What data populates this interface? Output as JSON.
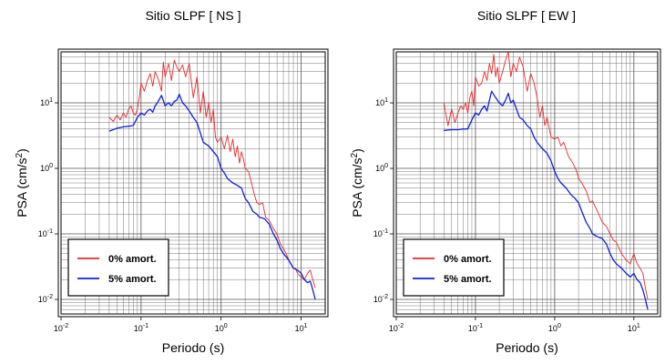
{
  "colors": {
    "undamped": "#e8292a",
    "damped": "#1020d8",
    "grid": "#555555",
    "frame": "#000000"
  },
  "chart_data": [
    {
      "type": "line",
      "title": "Sitio SLPF [ NS ]",
      "xlabel": "Periodo (s)",
      "ylabel_base": "PSA (cm/s",
      "ylabel_exp": "2",
      "ylabel_close": ")",
      "x_scale": "log",
      "y_scale": "log",
      "xlim": [
        0.01,
        20
      ],
      "ylim": [
        0.006,
        60
      ],
      "x_ticks": [
        {
          "value": 0.01,
          "base": "10",
          "exp": "-2"
        },
        {
          "value": 0.1,
          "base": "10",
          "exp": "-1"
        },
        {
          "value": 1,
          "base": "10",
          "exp": "0"
        },
        {
          "value": 10,
          "base": "10",
          "exp": "1"
        }
      ],
      "y_ticks": [
        {
          "value": 0.01,
          "base": "10",
          "exp": "-2"
        },
        {
          "value": 0.1,
          "base": "10",
          "exp": "-1"
        },
        {
          "value": 1,
          "base": "10",
          "exp": "0"
        },
        {
          "value": 10,
          "base": "10",
          "exp": "1"
        }
      ],
      "grid": true,
      "legend_position": "bottom-left",
      "series": [
        {
          "name": "0% amort.",
          "color": "#e8292a",
          "x": [
            0.04,
            0.045,
            0.05,
            0.055,
            0.06,
            0.065,
            0.07,
            0.075,
            0.08,
            0.085,
            0.09,
            0.095,
            0.1,
            0.11,
            0.12,
            0.13,
            0.14,
            0.15,
            0.16,
            0.17,
            0.18,
            0.19,
            0.2,
            0.22,
            0.24,
            0.26,
            0.28,
            0.3,
            0.33,
            0.36,
            0.4,
            0.45,
            0.5,
            0.55,
            0.6,
            0.65,
            0.7,
            0.75,
            0.8,
            0.85,
            0.9,
            1.0,
            1.1,
            1.2,
            1.3,
            1.4,
            1.5,
            1.6,
            1.7,
            1.8,
            1.9,
            2.0,
            2.2,
            2.4,
            2.6,
            2.8,
            3.0,
            3.3,
            3.6,
            4.0,
            4.5,
            5.0,
            5.5,
            6.0,
            6.5,
            7.0,
            7.5,
            8.0,
            8.5,
            9.0,
            10,
            11,
            12,
            13,
            14,
            15
          ],
          "y": [
            6,
            5.2,
            6.5,
            5.5,
            7,
            6,
            8,
            9,
            7,
            6.5,
            8,
            12,
            20,
            15,
            22,
            28,
            18,
            30,
            25,
            20,
            15,
            42,
            25,
            40,
            22,
            45,
            35,
            30,
            38,
            25,
            40,
            12,
            25,
            7,
            15,
            6,
            10,
            5,
            8,
            3,
            2.5,
            3,
            2,
            3.2,
            1.8,
            2.8,
            1.5,
            2.2,
            1.2,
            1.8,
            1.4,
            1.0,
            0.9,
            0.6,
            0.4,
            0.3,
            0.28,
            0.3,
            0.18,
            0.16,
            0.12,
            0.1,
            0.07,
            0.06,
            0.05,
            0.04,
            0.035,
            0.03,
            0.03,
            0.025,
            0.022,
            0.02,
            0.025,
            0.028,
            0.02,
            0.015
          ]
        },
        {
          "name": "5% amort.",
          "color": "#1020d8",
          "x": [
            0.04,
            0.05,
            0.06,
            0.07,
            0.08,
            0.09,
            0.1,
            0.11,
            0.12,
            0.13,
            0.14,
            0.15,
            0.16,
            0.18,
            0.2,
            0.22,
            0.24,
            0.26,
            0.28,
            0.3,
            0.33,
            0.36,
            0.4,
            0.45,
            0.5,
            0.55,
            0.6,
            0.7,
            0.8,
            0.9,
            1.0,
            1.1,
            1.2,
            1.4,
            1.6,
            1.8,
            2.0,
            2.2,
            2.5,
            2.8,
            3.0,
            3.5,
            4.0,
            4.5,
            5.0,
            5.5,
            6.0,
            7.0,
            8.0,
            9.0,
            10,
            11,
            12,
            13,
            14,
            15
          ],
          "y": [
            3.7,
            4.1,
            4.3,
            4.4,
            4.5,
            6,
            7,
            6.5,
            7.5,
            8,
            7.2,
            9,
            10,
            13,
            9,
            10,
            9,
            10.5,
            11,
            13.5,
            10,
            9,
            7.5,
            6,
            5,
            3.5,
            2.5,
            2.2,
            1.8,
            1.5,
            1.0,
            0.85,
            0.7,
            0.6,
            0.55,
            0.5,
            0.35,
            0.3,
            0.22,
            0.2,
            0.18,
            0.17,
            0.14,
            0.1,
            0.08,
            0.06,
            0.05,
            0.04,
            0.03,
            0.028,
            0.025,
            0.02,
            0.018,
            0.019,
            0.014,
            0.01
          ]
        }
      ]
    },
    {
      "type": "line",
      "title": "Sitio SLPF [ EW ]",
      "xlabel": "Periodo (s)",
      "ylabel_base": "PSA (cm/s",
      "ylabel_exp": "2",
      "ylabel_close": ")",
      "x_scale": "log",
      "y_scale": "log",
      "xlim": [
        0.01,
        20
      ],
      "ylim": [
        0.006,
        60
      ],
      "x_ticks": [
        {
          "value": 0.01,
          "base": "10",
          "exp": "-2"
        },
        {
          "value": 0.1,
          "base": "10",
          "exp": "-1"
        },
        {
          "value": 1,
          "base": "10",
          "exp": "0"
        },
        {
          "value": 10,
          "base": "10",
          "exp": "1"
        }
      ],
      "y_ticks": [
        {
          "value": 0.01,
          "base": "10",
          "exp": "-2"
        },
        {
          "value": 0.1,
          "base": "10",
          "exp": "-1"
        },
        {
          "value": 1,
          "base": "10",
          "exp": "0"
        },
        {
          "value": 10,
          "base": "10",
          "exp": "1"
        }
      ],
      "grid": true,
      "legend_position": "bottom-left",
      "series": [
        {
          "name": "0% amort.",
          "color": "#e8292a",
          "x": [
            0.04,
            0.045,
            0.05,
            0.055,
            0.06,
            0.065,
            0.07,
            0.075,
            0.08,
            0.085,
            0.09,
            0.095,
            0.1,
            0.11,
            0.12,
            0.13,
            0.14,
            0.15,
            0.16,
            0.17,
            0.18,
            0.19,
            0.2,
            0.22,
            0.24,
            0.26,
            0.28,
            0.3,
            0.33,
            0.36,
            0.4,
            0.45,
            0.5,
            0.55,
            0.6,
            0.65,
            0.7,
            0.75,
            0.8,
            0.9,
            1.0,
            1.1,
            1.2,
            1.3,
            1.5,
            1.7,
            1.9,
            2.0,
            2.2,
            2.5,
            2.8,
            3.0,
            3.3,
            3.6,
            4.0,
            4.5,
            5.0,
            5.5,
            6.0,
            6.5,
            7.0,
            8.0,
            9.0,
            10,
            11,
            12,
            13,
            14,
            15
          ],
          "y": [
            10,
            4.5,
            8,
            5,
            7,
            9,
            8,
            10,
            7,
            12,
            15,
            9,
            25,
            18,
            20,
            30,
            22,
            40,
            28,
            55,
            25,
            35,
            20,
            30,
            45,
            60,
            25,
            40,
            30,
            50,
            35,
            15,
            28,
            20,
            12,
            6,
            9,
            4.5,
            6,
            3,
            2.8,
            3,
            2.2,
            2.5,
            1.5,
            1.2,
            0.9,
            0.7,
            0.6,
            0.45,
            0.3,
            0.32,
            0.25,
            0.2,
            0.15,
            0.13,
            0.1,
            0.08,
            0.075,
            0.06,
            0.05,
            0.04,
            0.035,
            0.05,
            0.035,
            0.03,
            0.025,
            0.015,
            0.01
          ]
        },
        {
          "name": "5% amort.",
          "color": "#1020d8",
          "x": [
            0.04,
            0.05,
            0.06,
            0.07,
            0.08,
            0.09,
            0.1,
            0.11,
            0.12,
            0.13,
            0.14,
            0.15,
            0.16,
            0.18,
            0.2,
            0.22,
            0.24,
            0.26,
            0.28,
            0.3,
            0.33,
            0.36,
            0.4,
            0.45,
            0.5,
            0.55,
            0.6,
            0.7,
            0.8,
            0.9,
            1.0,
            1.1,
            1.2,
            1.4,
            1.6,
            1.8,
            2.0,
            2.2,
            2.5,
            2.8,
            3.0,
            3.5,
            4.0,
            4.5,
            5.0,
            5.5,
            6.0,
            7.0,
            8.0,
            9.0,
            10,
            11,
            12,
            13,
            14,
            15
          ],
          "y": [
            3.8,
            3.9,
            3.9,
            4.0,
            4.0,
            5.5,
            7,
            6.5,
            8,
            9,
            7.5,
            11,
            15,
            12,
            10,
            9,
            11,
            14,
            10,
            11,
            8,
            6,
            5.5,
            4.5,
            4,
            3,
            2.5,
            2.0,
            1.7,
            1.3,
            0.9,
            0.7,
            0.6,
            0.5,
            0.4,
            0.35,
            0.3,
            0.22,
            0.15,
            0.12,
            0.1,
            0.09,
            0.085,
            0.07,
            0.05,
            0.04,
            0.035,
            0.03,
            0.025,
            0.022,
            0.025,
            0.02,
            0.018,
            0.014,
            0.01,
            0.007
          ]
        }
      ]
    }
  ]
}
